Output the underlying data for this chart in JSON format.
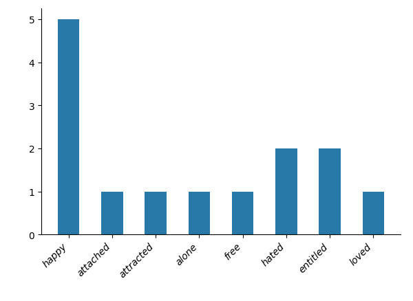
{
  "categories": [
    "happy",
    "attached",
    "attracted",
    "alone",
    "free",
    "hated",
    "entitled",
    "loved"
  ],
  "values": [
    5,
    1,
    1,
    1,
    1,
    2,
    2,
    1
  ],
  "bar_color": "#2878a8",
  "ylim": [
    0,
    5.25
  ],
  "yticks": [
    0,
    1,
    2,
    3,
    4,
    5
  ],
  "background_color": "#ffffff",
  "xlabel": "",
  "ylabel": "",
  "tick_fontsize": 10,
  "bar_width": 0.5
}
